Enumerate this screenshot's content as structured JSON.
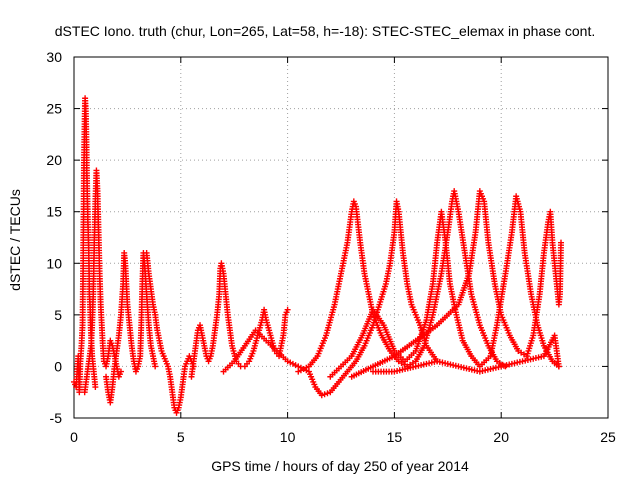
{
  "chart_data": {
    "type": "scatter",
    "title": "dSTEC Iono. truth (chur, Lon=265, Lat=58, h=-18): STEC-STEC_elemax in phase cont.",
    "xlabel": "GPS time / hours of day 250 of year 2014",
    "ylabel": "dSTEC  / TECUs",
    "xlim": [
      0,
      25
    ],
    "ylim": [
      -5,
      30
    ],
    "x_ticks": [
      "0",
      "5",
      "10",
      "15",
      "20",
      "25"
    ],
    "y_ticks": [
      "-5",
      "0",
      "5",
      "10",
      "15",
      "20",
      "25",
      "30"
    ],
    "grid": true,
    "marker": "plus",
    "color": "#ff0000",
    "series": [
      {
        "values": [
          [
            0.0,
            -1.5
          ],
          [
            0.1,
            -2.0
          ],
          [
            0.15,
            -0.5
          ],
          [
            0.2,
            1.0
          ],
          [
            0.25,
            -2.5
          ],
          [
            0.3,
            0.5
          ],
          [
            0.35,
            2.0
          ],
          [
            0.4,
            4.0
          ],
          [
            0.42,
            8.0
          ],
          [
            0.45,
            15.0
          ],
          [
            0.47,
            20.0
          ],
          [
            0.5,
            24.0
          ],
          [
            0.52,
            26.0
          ],
          [
            0.55,
            25.0
          ],
          [
            0.58,
            22.0
          ],
          [
            0.6,
            19.0
          ],
          [
            0.62,
            17.0
          ],
          [
            0.65,
            14.0
          ],
          [
            0.68,
            12.0
          ],
          [
            0.7,
            10.0
          ],
          [
            0.72,
            7.0
          ],
          [
            0.75,
            6.0
          ],
          [
            0.78,
            4.0
          ],
          [
            0.8,
            3.0
          ],
          [
            0.85,
            1.0
          ],
          [
            0.9,
            0.0
          ],
          [
            0.95,
            -1.0
          ],
          [
            1.0,
            -2.0
          ]
        ]
      },
      {
        "values": [
          [
            0.5,
            -2.5
          ],
          [
            0.6,
            -1.0
          ],
          [
            0.7,
            0.5
          ],
          [
            0.8,
            2.0
          ],
          [
            0.85,
            4.0
          ],
          [
            0.9,
            7.0
          ],
          [
            0.95,
            12.0
          ],
          [
            1.0,
            16.0
          ],
          [
            1.05,
            19.0
          ],
          [
            1.1,
            17.0
          ],
          [
            1.15,
            13.0
          ],
          [
            1.2,
            9.0
          ],
          [
            1.25,
            6.0
          ],
          [
            1.3,
            4.0
          ],
          [
            1.35,
            2.0
          ],
          [
            1.4,
            0.5
          ],
          [
            1.5,
            0.0
          ],
          [
            1.6,
            1.0
          ],
          [
            1.7,
            2.5
          ],
          [
            1.8,
            2.0
          ],
          [
            1.9,
            1.0
          ],
          [
            2.0,
            0.0
          ],
          [
            2.1,
            -1.0
          ],
          [
            2.2,
            -0.5
          ]
        ]
      },
      {
        "values": [
          [
            1.5,
            -1.0
          ],
          [
            1.6,
            -2.5
          ],
          [
            1.7,
            -3.5
          ],
          [
            1.8,
            -2.0
          ],
          [
            1.9,
            0.0
          ],
          [
            2.0,
            1.5
          ],
          [
            2.1,
            3.0
          ],
          [
            2.2,
            5.0
          ],
          [
            2.3,
            8.0
          ],
          [
            2.35,
            11.0
          ],
          [
            2.4,
            10.0
          ],
          [
            2.45,
            8.0
          ],
          [
            2.5,
            6.0
          ],
          [
            2.6,
            4.0
          ],
          [
            2.7,
            2.0
          ],
          [
            2.8,
            0.5
          ],
          [
            2.9,
            -0.5
          ],
          [
            3.0,
            0.0
          ],
          [
            3.1,
            1.0
          ],
          [
            3.15,
            4.0
          ],
          [
            3.2,
            8.0
          ],
          [
            3.25,
            11.0
          ],
          [
            3.3,
            10.0
          ],
          [
            3.4,
            7.0
          ],
          [
            3.5,
            4.0
          ],
          [
            3.6,
            2.0
          ],
          [
            3.7,
            1.0
          ],
          [
            3.8,
            0.0
          ]
        ]
      },
      {
        "values": [
          [
            3.4,
            11.0
          ],
          [
            3.5,
            9.0
          ],
          [
            3.6,
            7.5
          ],
          [
            3.7,
            6.0
          ],
          [
            3.8,
            5.0
          ],
          [
            3.9,
            3.5
          ],
          [
            4.0,
            2.5
          ],
          [
            4.1,
            1.5
          ],
          [
            4.2,
            1.0
          ],
          [
            4.3,
            0.5
          ],
          [
            4.4,
            0.0
          ],
          [
            4.5,
            -1.0
          ],
          [
            4.6,
            -2.5
          ],
          [
            4.7,
            -4.0
          ],
          [
            4.8,
            -4.5
          ],
          [
            4.9,
            -4.0
          ],
          [
            5.0,
            -3.0
          ],
          [
            5.1,
            -1.5
          ],
          [
            5.2,
            0.0
          ],
          [
            5.3,
            0.5
          ],
          [
            5.4,
            1.0
          ],
          [
            5.5,
            0.5
          ],
          [
            5.6,
            0.0
          ]
        ]
      },
      {
        "values": [
          [
            5.5,
            -1.0
          ],
          [
            5.6,
            0.5
          ],
          [
            5.7,
            2.0
          ],
          [
            5.8,
            3.5
          ],
          [
            5.9,
            4.0
          ],
          [
            6.0,
            3.0
          ],
          [
            6.1,
            2.0
          ],
          [
            6.2,
            1.0
          ],
          [
            6.3,
            0.5
          ],
          [
            6.4,
            1.0
          ],
          [
            6.5,
            2.0
          ],
          [
            6.6,
            3.5
          ],
          [
            6.7,
            5.0
          ],
          [
            6.8,
            7.0
          ],
          [
            6.85,
            9.5
          ],
          [
            6.9,
            10.0
          ],
          [
            7.0,
            9.0
          ],
          [
            7.1,
            7.0
          ],
          [
            7.2,
            5.0
          ],
          [
            7.3,
            3.5
          ],
          [
            7.4,
            2.0
          ],
          [
            7.6,
            0.5
          ],
          [
            7.8,
            0.0
          ],
          [
            8.0,
            0.0
          ],
          [
            8.2,
            0.5
          ],
          [
            8.4,
            1.5
          ],
          [
            8.6,
            3.0
          ],
          [
            8.8,
            4.5
          ],
          [
            8.9,
            5.5
          ],
          [
            9.0,
            4.5
          ],
          [
            9.2,
            3.0
          ],
          [
            9.4,
            1.5
          ],
          [
            9.6,
            1.0
          ],
          [
            9.8,
            3.0
          ],
          [
            9.9,
            5.0
          ],
          [
            10.0,
            5.5
          ]
        ]
      },
      {
        "values": [
          [
            7.0,
            -0.5
          ],
          [
            7.5,
            0.5
          ],
          [
            8.0,
            2.0
          ],
          [
            8.5,
            3.5
          ],
          [
            9.0,
            2.5
          ],
          [
            9.5,
            1.5
          ],
          [
            10.0,
            0.5
          ],
          [
            10.5,
            0.0
          ],
          [
            11.0,
            -0.5
          ],
          [
            11.3,
            -2.0
          ],
          [
            11.6,
            -2.8
          ],
          [
            12.0,
            -2.5
          ],
          [
            12.4,
            -1.5
          ],
          [
            12.8,
            -0.5
          ],
          [
            13.2,
            0.5
          ],
          [
            13.6,
            2.0
          ],
          [
            14.0,
            4.0
          ],
          [
            14.3,
            6.0
          ],
          [
            14.6,
            8.0
          ],
          [
            14.8,
            10.0
          ],
          [
            15.0,
            13.0
          ],
          [
            15.1,
            16.0
          ],
          [
            15.2,
            15.0
          ],
          [
            15.4,
            11.0
          ],
          [
            15.6,
            8.0
          ],
          [
            15.8,
            6.0
          ],
          [
            16.0,
            5.0
          ],
          [
            16.2,
            4.0
          ],
          [
            16.5,
            2.0
          ],
          [
            17.0,
            0.5
          ]
        ]
      },
      {
        "values": [
          [
            10.5,
            -0.5
          ],
          [
            11.0,
            0.0
          ],
          [
            11.4,
            1.0
          ],
          [
            11.8,
            3.0
          ],
          [
            12.2,
            6.0
          ],
          [
            12.5,
            9.0
          ],
          [
            12.8,
            12.0
          ],
          [
            13.0,
            15.0
          ],
          [
            13.1,
            16.0
          ],
          [
            13.2,
            15.5
          ],
          [
            13.4,
            12.0
          ],
          [
            13.6,
            9.0
          ],
          [
            13.8,
            7.0
          ],
          [
            14.0,
            5.0
          ],
          [
            14.4,
            3.0
          ],
          [
            14.8,
            1.5
          ],
          [
            15.2,
            0.5
          ],
          [
            15.6,
            0.0
          ],
          [
            16.0,
            0.5
          ],
          [
            16.4,
            2.0
          ],
          [
            16.8,
            5.0
          ],
          [
            17.2,
            9.0
          ],
          [
            17.5,
            13.0
          ],
          [
            17.7,
            16.0
          ],
          [
            17.8,
            17.0
          ],
          [
            18.0,
            15.0
          ],
          [
            18.3,
            11.0
          ],
          [
            18.6,
            7.0
          ],
          [
            19.0,
            4.0
          ],
          [
            19.4,
            2.0
          ],
          [
            19.8,
            0.5
          ],
          [
            20.2,
            0.0
          ]
        ]
      },
      {
        "values": [
          [
            12.0,
            -1.0
          ],
          [
            12.5,
            0.0
          ],
          [
            13.0,
            1.0
          ],
          [
            13.5,
            3.0
          ],
          [
            14.0,
            5.5
          ],
          [
            14.5,
            4.0
          ],
          [
            15.0,
            1.5
          ],
          [
            15.5,
            0.5
          ],
          [
            16.0,
            1.5
          ],
          [
            16.5,
            4.5
          ],
          [
            16.8,
            8.0
          ],
          [
            17.0,
            12.0
          ],
          [
            17.2,
            15.0
          ],
          [
            17.4,
            12.0
          ],
          [
            17.6,
            8.0
          ],
          [
            17.9,
            5.0
          ],
          [
            18.2,
            2.5
          ],
          [
            18.6,
            1.0
          ],
          [
            19.0,
            0.0
          ],
          [
            19.5,
            1.0
          ],
          [
            19.8,
            4.0
          ],
          [
            20.2,
            9.0
          ],
          [
            20.5,
            13.0
          ],
          [
            20.7,
            16.5
          ],
          [
            20.9,
            15.0
          ],
          [
            21.1,
            11.0
          ],
          [
            21.4,
            7.0
          ],
          [
            21.7,
            4.0
          ],
          [
            22.0,
            2.0
          ],
          [
            22.4,
            0.5
          ],
          [
            22.7,
            0.0
          ]
        ]
      },
      {
        "values": [
          [
            13.0,
            -1.0
          ],
          [
            14.0,
            0.0
          ],
          [
            15.0,
            1.0
          ],
          [
            16.0,
            2.5
          ],
          [
            17.0,
            4.0
          ],
          [
            18.0,
            6.0
          ],
          [
            18.5,
            9.0
          ],
          [
            18.8,
            13.0
          ],
          [
            19.0,
            17.0
          ],
          [
            19.2,
            16.0
          ],
          [
            19.4,
            12.0
          ],
          [
            19.7,
            8.0
          ],
          [
            20.0,
            5.0
          ],
          [
            20.4,
            3.0
          ],
          [
            20.8,
            1.5
          ],
          [
            21.2,
            1.0
          ],
          [
            21.5,
            3.0
          ],
          [
            21.8,
            7.0
          ],
          [
            22.0,
            11.0
          ],
          [
            22.2,
            14.0
          ],
          [
            22.3,
            15.0
          ],
          [
            22.4,
            12.0
          ],
          [
            22.6,
            8.0
          ],
          [
            22.7,
            6.0
          ],
          [
            22.75,
            7.0
          ],
          [
            22.8,
            12.0
          ]
        ]
      },
      {
        "values": [
          [
            14.0,
            -0.5
          ],
          [
            15.0,
            -0.5
          ],
          [
            16.0,
            0.0
          ],
          [
            17.0,
            0.5
          ],
          [
            18.0,
            0.0
          ],
          [
            19.0,
            -0.5
          ],
          [
            20.0,
            0.0
          ],
          [
            21.0,
            0.5
          ],
          [
            22.0,
            1.0
          ],
          [
            22.5,
            3.0
          ],
          [
            22.7,
            0.0
          ]
        ]
      }
    ]
  }
}
